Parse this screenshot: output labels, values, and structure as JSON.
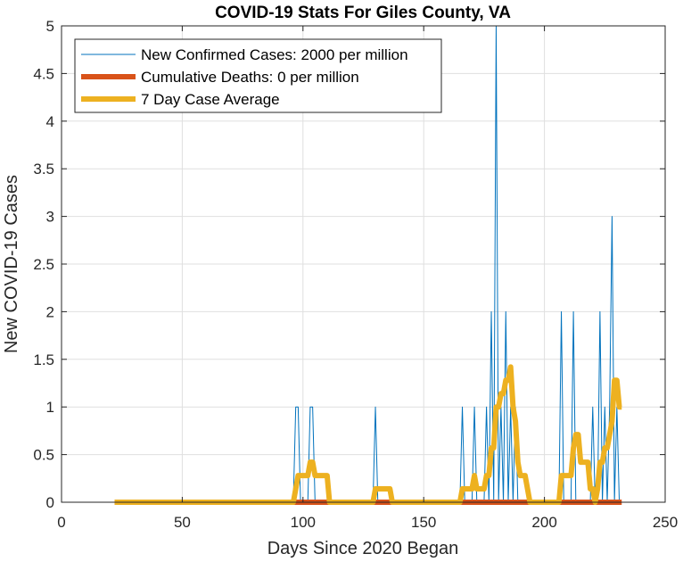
{
  "chart_data": {
    "type": "line",
    "title": "COVID-19 Stats For Giles County, VA",
    "xlabel": "Days Since 2020 Began",
    "ylabel": "New COVID-19 Cases",
    "xlim": [
      0,
      250
    ],
    "ylim": [
      0,
      5
    ],
    "xticks": [
      0,
      50,
      100,
      150,
      200,
      250
    ],
    "yticks": [
      0,
      0.5,
      1,
      1.5,
      2,
      2.5,
      3,
      3.5,
      4,
      4.5,
      5
    ],
    "grid": true,
    "legend_position": "top-left",
    "colors": {
      "cases": "#0072BD",
      "deaths": "#D95319",
      "avg": "#EDB120"
    },
    "series": [
      {
        "name": "New Confirmed Cases: 2000 per million",
        "style": "thin",
        "x": [
          22,
          96,
          97,
          98,
          99,
          102,
          103,
          104,
          105,
          129,
          130,
          131,
          165,
          166,
          167,
          170,
          171,
          172,
          175,
          176,
          177,
          178,
          179,
          180,
          181,
          182,
          183,
          184,
          185,
          186,
          187,
          188,
          189,
          206,
          207,
          208,
          211,
          212,
          213,
          219,
          220,
          221,
          222,
          223,
          224,
          225,
          226,
          227,
          228,
          229,
          230,
          231,
          232
        ],
        "y": [
          0,
          0,
          1,
          1,
          0,
          0,
          1,
          1,
          0,
          0,
          1,
          0,
          0,
          1,
          0,
          0,
          1,
          0,
          0,
          1,
          0,
          2,
          0,
          5,
          0,
          1,
          0,
          2,
          0,
          1,
          0,
          1,
          0,
          0,
          2,
          0,
          0,
          2,
          0,
          0,
          1,
          0,
          0,
          2,
          0,
          1,
          0,
          1,
          3,
          0,
          1,
          0,
          0
        ]
      },
      {
        "name": "Cumulative Deaths: 0 per million",
        "style": "thick",
        "x": [
          22,
          232
        ],
        "y": [
          0,
          0
        ]
      },
      {
        "name": "7 Day Case Average",
        "style": "thick",
        "x": [
          22,
          96,
          97,
          98,
          99,
          102,
          103,
          104,
          105,
          106,
          110,
          111,
          129,
          130,
          136,
          137,
          165,
          166,
          170,
          171,
          172,
          173,
          175,
          176,
          177,
          178,
          179,
          180,
          181,
          182,
          183,
          184,
          185,
          186,
          187,
          188,
          189,
          190,
          191,
          192,
          193,
          194,
          206,
          207,
          208,
          209,
          210,
          211,
          212,
          213,
          214,
          215,
          216,
          217,
          218,
          219,
          220,
          221,
          222,
          223,
          224,
          225,
          226,
          227,
          228,
          229,
          230,
          231,
          232
        ],
        "y": [
          0,
          0,
          0.14,
          0.28,
          0.28,
          0.28,
          0.42,
          0.42,
          0.28,
          0.28,
          0.28,
          0,
          0,
          0.14,
          0.14,
          0,
          0,
          0.14,
          0.14,
          0.28,
          0.14,
          0.14,
          0.14,
          0.28,
          0.28,
          0.57,
          0.57,
          1.0,
          1.0,
          1.14,
          1.14,
          1.28,
          1.28,
          1.42,
          1.0,
          0.85,
          0.42,
          0.28,
          0.28,
          0.28,
          0.14,
          0,
          0,
          0.28,
          0.28,
          0.28,
          0.28,
          0.28,
          0.57,
          0.71,
          0.71,
          0.42,
          0.42,
          0.42,
          0.42,
          0.14,
          0.14,
          0,
          0.14,
          0.42,
          0.42,
          0.57,
          0.57,
          0.71,
          0.85,
          1.28,
          1.28,
          1.0,
          1.0
        ]
      }
    ]
  }
}
